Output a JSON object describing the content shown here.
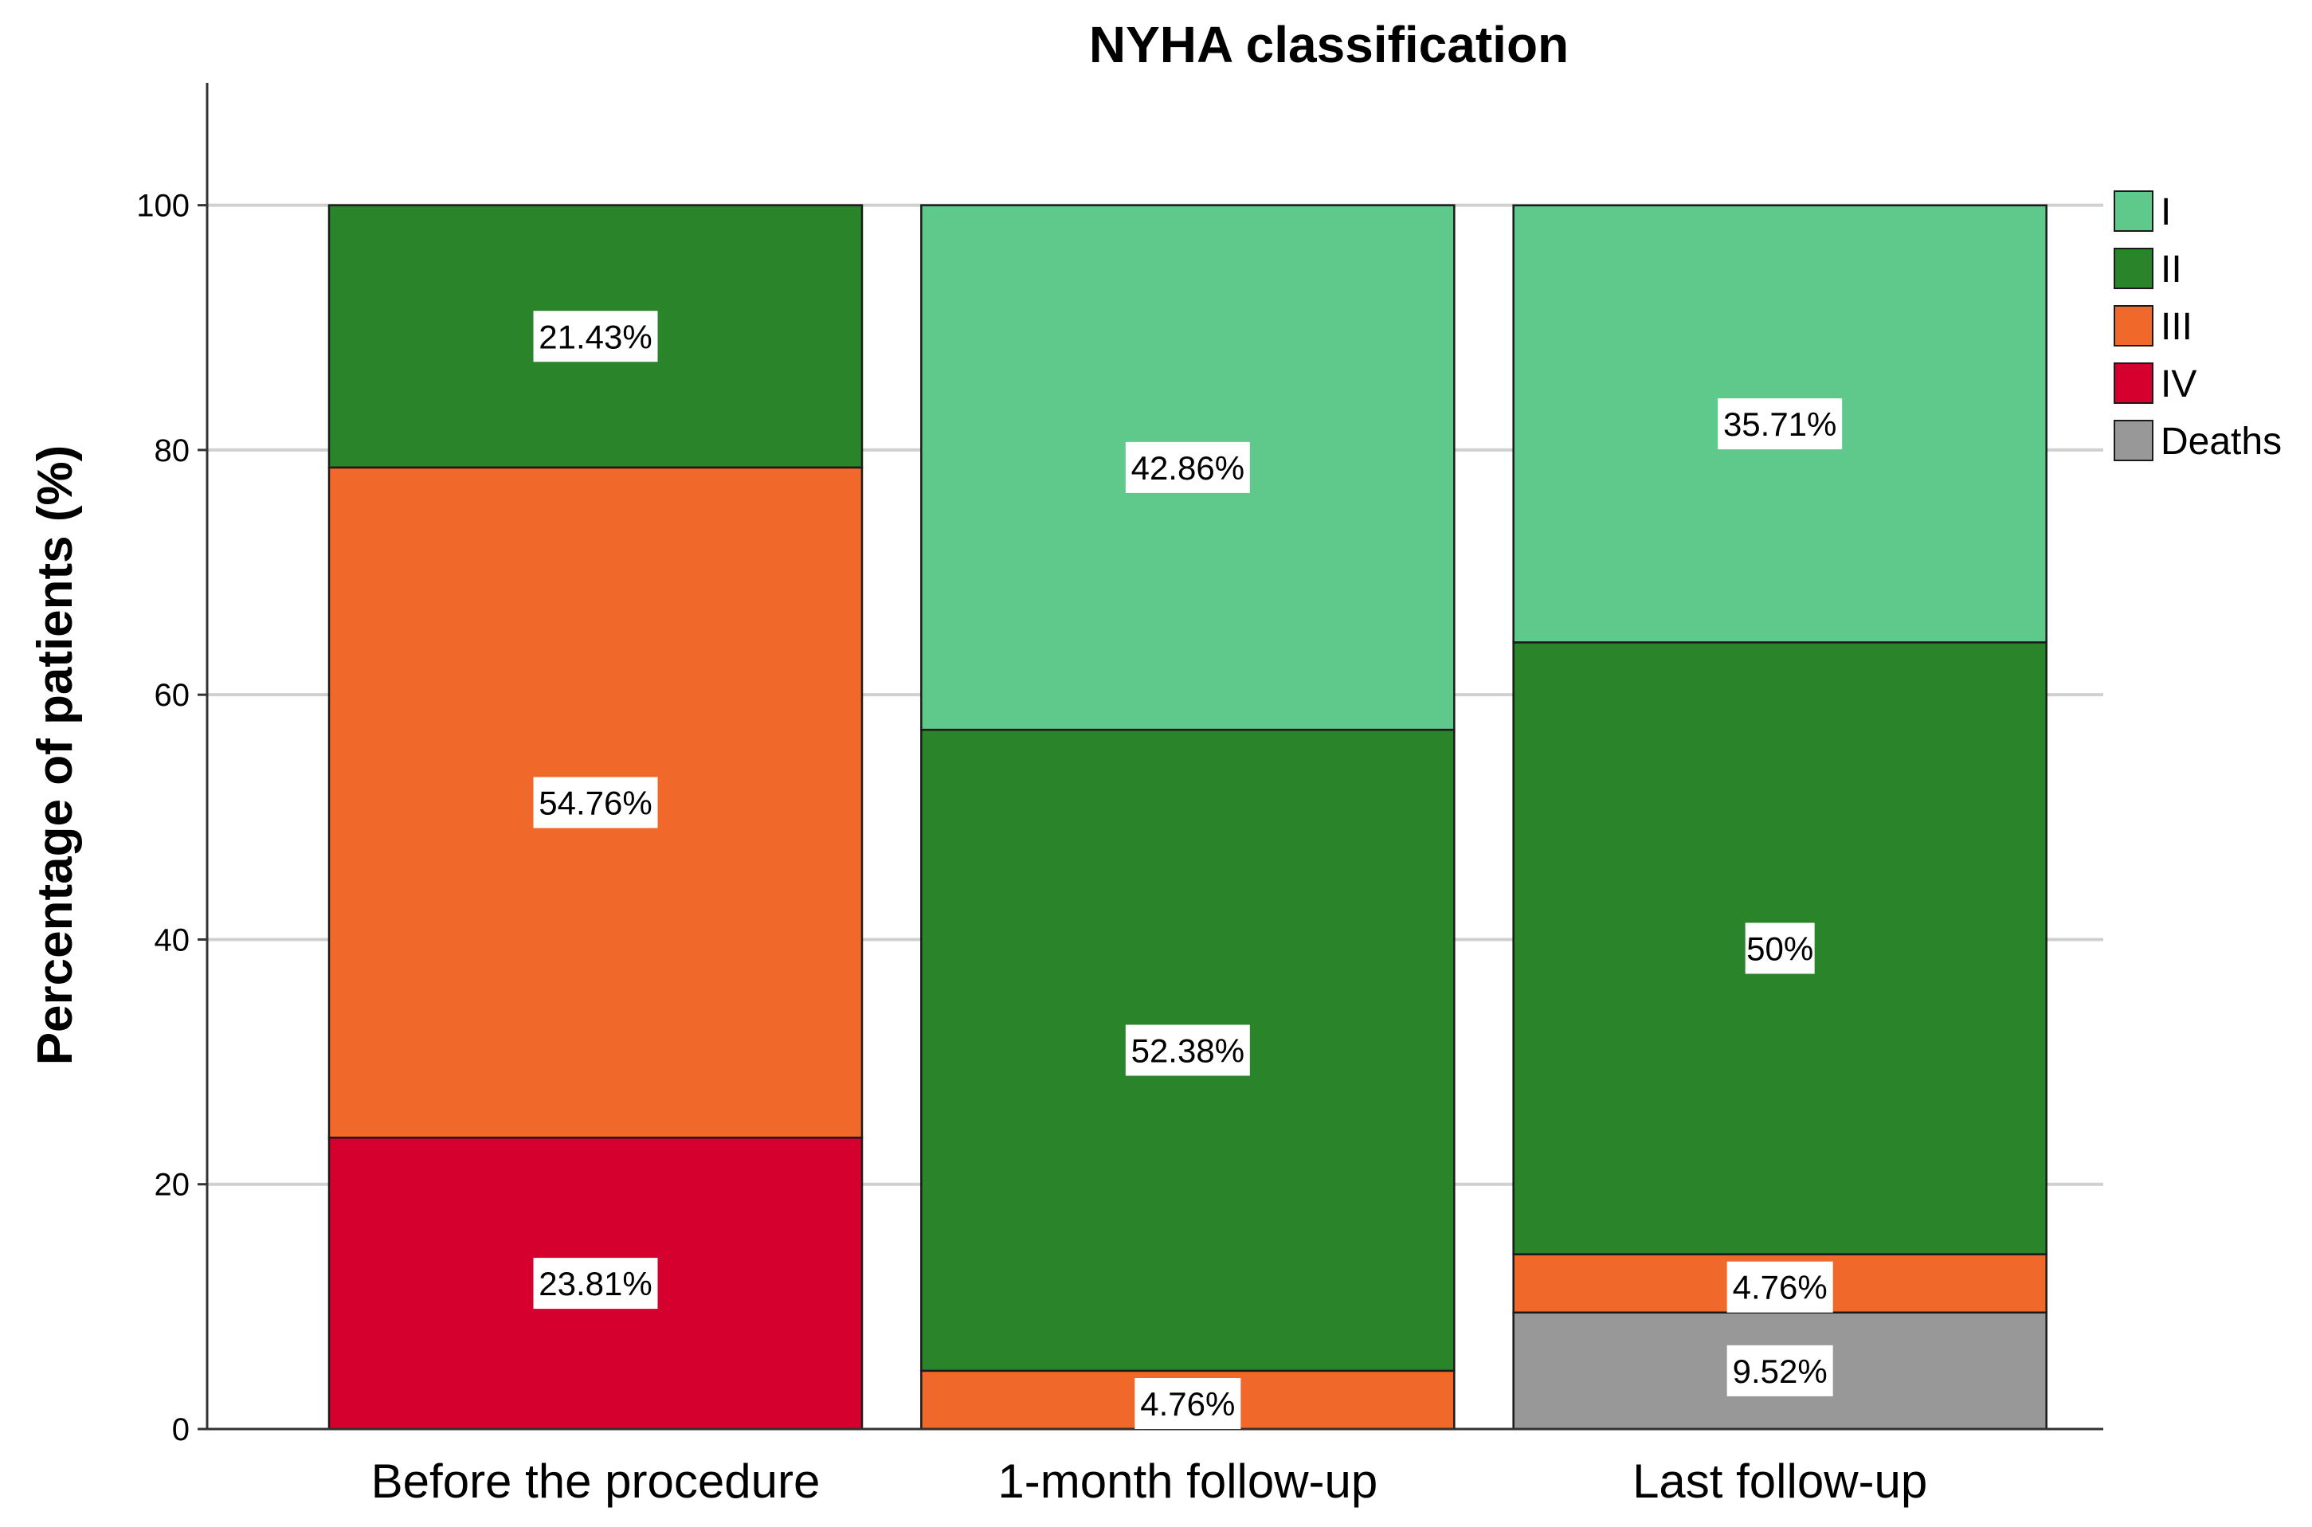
{
  "chart_data": {
    "type": "bar",
    "stacked": true,
    "title": "NYHA classification",
    "xlabel": "",
    "ylabel": "Percentage of patients (%)",
    "ylim": [
      0,
      110
    ],
    "yticks": [
      "0",
      "20",
      "40",
      "60",
      "80",
      "100"
    ],
    "grid": true,
    "legend_position": "right",
    "categories": [
      "Before the procedure",
      "1-month follow-up",
      "Last follow-up"
    ],
    "series": [
      {
        "name": "Deaths",
        "color": "#989898",
        "values": [
          0,
          0,
          9.52
        ],
        "labels": [
          "",
          "",
          "9.52%"
        ]
      },
      {
        "name": "IV",
        "color": "#d6002f",
        "values": [
          23.81,
          0,
          0
        ],
        "labels": [
          "23.81%",
          "",
          ""
        ]
      },
      {
        "name": "III",
        "color": "#f0692b",
        "values": [
          54.76,
          4.76,
          4.76
        ],
        "labels": [
          "54.76%",
          "4.76%",
          "4.76%"
        ]
      },
      {
        "name": "II",
        "color": "#2a8429",
        "values": [
          21.43,
          52.38,
          50
        ],
        "labels": [
          "21.43%",
          "52.38%",
          "50%"
        ]
      },
      {
        "name": "I",
        "color": "#5ec98b",
        "values": [
          0,
          42.86,
          35.71
        ],
        "labels": [
          "",
          "42.86%",
          "35.71%"
        ]
      }
    ],
    "legend_order": [
      "I",
      "II",
      "III",
      "IV",
      "Deaths"
    ]
  }
}
